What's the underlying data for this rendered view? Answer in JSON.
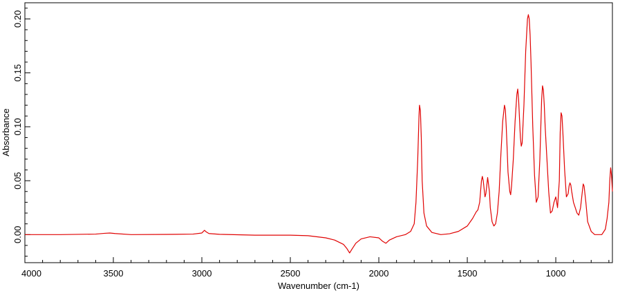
{
  "chart_data": {
    "type": "line",
    "xlabel": "Wavenumber (cm-1)",
    "ylabel": "Absorbance",
    "xlim": [
      4000,
      680
    ],
    "ylim": [
      -0.026,
      0.215
    ],
    "x_reversed": true,
    "grid": false,
    "line_color": "#e00000",
    "xticks": [
      {
        "value": 4000,
        "label": "4000"
      },
      {
        "value": 3500,
        "label": "3500"
      },
      {
        "value": 3000,
        "label": "3000"
      },
      {
        "value": 2500,
        "label": "2500"
      },
      {
        "value": 2000,
        "label": "2000"
      },
      {
        "value": 1500,
        "label": "1500"
      },
      {
        "value": 1000,
        "label": "1000"
      }
    ],
    "yticks": [
      {
        "value": 0.0,
        "label": "0.00"
      },
      {
        "value": 0.05,
        "label": "0.05"
      },
      {
        "value": 0.1,
        "label": "0.10"
      },
      {
        "value": 0.15,
        "label": "0.15"
      },
      {
        "value": 0.2,
        "label": "0.20"
      }
    ],
    "series": [
      {
        "x": [
          4000,
          3800,
          3600,
          3550,
          3520,
          3490,
          3400,
          3200,
          3050,
          3000,
          2985,
          2975,
          2960,
          2900,
          2700,
          2500,
          2400,
          2300,
          2250,
          2200,
          2180,
          2165,
          2150,
          2130,
          2100,
          2050,
          2000,
          1980,
          1960,
          1940,
          1900,
          1850,
          1820,
          1800,
          1790,
          1780,
          1773,
          1770,
          1765,
          1760,
          1755,
          1745,
          1730,
          1700,
          1650,
          1600,
          1550,
          1500,
          1470,
          1450,
          1440,
          1430,
          1420,
          1415,
          1410,
          1400,
          1395,
          1385,
          1375,
          1370,
          1360,
          1350,
          1340,
          1330,
          1320,
          1310,
          1300,
          1290,
          1285,
          1280,
          1275,
          1270,
          1260,
          1255,
          1250,
          1240,
          1230,
          1220,
          1215,
          1210,
          1200,
          1195,
          1190,
          1180,
          1170,
          1160,
          1155,
          1150,
          1145,
          1140,
          1130,
          1120,
          1110,
          1100,
          1090,
          1080,
          1075,
          1070,
          1065,
          1060,
          1050,
          1040,
          1030,
          1020,
          1010,
          1000,
          990,
          980,
          975,
          970,
          965,
          960,
          950,
          940,
          930,
          925,
          920,
          915,
          910,
          900,
          890,
          880,
          870,
          860,
          850,
          845,
          840,
          830,
          820,
          800,
          780,
          760,
          740,
          720,
          710,
          700,
          695,
          690,
          685,
          680
        ],
        "y": [
          0.0,
          0.0,
          0.0005,
          0.0012,
          0.0015,
          0.001,
          0.0,
          0.0002,
          0.0005,
          0.0015,
          0.004,
          0.0025,
          0.001,
          0.0003,
          -0.0005,
          -0.0005,
          -0.001,
          -0.003,
          -0.005,
          -0.009,
          -0.013,
          -0.017,
          -0.013,
          -0.008,
          -0.004,
          -0.002,
          -0.003,
          -0.006,
          -0.008,
          -0.005,
          -0.002,
          0.0,
          0.003,
          0.01,
          0.03,
          0.07,
          0.11,
          0.12,
          0.115,
          0.09,
          0.05,
          0.02,
          0.008,
          0.002,
          0.0,
          0.0008,
          0.003,
          0.008,
          0.015,
          0.021,
          0.023,
          0.03,
          0.05,
          0.054,
          0.05,
          0.035,
          0.038,
          0.053,
          0.04,
          0.025,
          0.012,
          0.008,
          0.01,
          0.02,
          0.04,
          0.075,
          0.105,
          0.12,
          0.116,
          0.1,
          0.08,
          0.058,
          0.04,
          0.037,
          0.045,
          0.07,
          0.105,
          0.13,
          0.135,
          0.125,
          0.09,
          0.082,
          0.085,
          0.12,
          0.17,
          0.2,
          0.204,
          0.2,
          0.185,
          0.16,
          0.1,
          0.055,
          0.03,
          0.035,
          0.07,
          0.125,
          0.138,
          0.134,
          0.12,
          0.1,
          0.07,
          0.04,
          0.02,
          0.022,
          0.03,
          0.035,
          0.025,
          0.05,
          0.095,
          0.113,
          0.11,
          0.095,
          0.06,
          0.035,
          0.038,
          0.045,
          0.048,
          0.046,
          0.04,
          0.03,
          0.025,
          0.02,
          0.018,
          0.025,
          0.04,
          0.047,
          0.045,
          0.03,
          0.012,
          0.003,
          0.0,
          0.0,
          0.0,
          0.005,
          0.015,
          0.03,
          0.05,
          0.062,
          0.055,
          0.04
        ]
      }
    ]
  }
}
